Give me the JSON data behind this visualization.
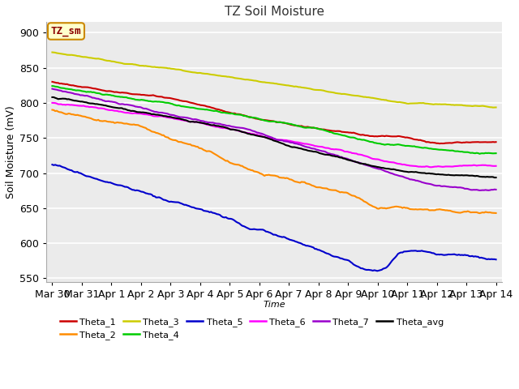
{
  "title": "TZ Soil Moisture",
  "ylabel": "Soil Moisture (mV)",
  "xlabel": "Time",
  "label_box": "TZ_sm",
  "x_ticks": [
    "Mar 30",
    "Mar 31",
    "Apr 1",
    "Apr 2",
    "Apr 3",
    "Apr 4",
    "Apr 5",
    "Apr 6",
    "Apr 7",
    "Apr 8",
    "Apr 9",
    "Apr 10",
    "Apr 11",
    "Apr 12",
    "Apr 13",
    "Apr 14"
  ],
  "ylim": [
    545,
    915
  ],
  "yticks": [
    550,
    600,
    650,
    700,
    750,
    800,
    850,
    900
  ],
  "series": {
    "Theta_1": {
      "color": "#cc0000"
    },
    "Theta_2": {
      "color": "#ff8c00"
    },
    "Theta_3": {
      "color": "#cccc00"
    },
    "Theta_4": {
      "color": "#00cc00"
    },
    "Theta_5": {
      "color": "#0000cc"
    },
    "Theta_6": {
      "color": "#ff00ff"
    },
    "Theta_7": {
      "color": "#9900cc"
    },
    "Theta_avg": {
      "color": "#000000"
    }
  },
  "background_color": "#ffffff",
  "plot_bg_color": "#ebebeb",
  "grid_color": "#ffffff",
  "n_points": 300,
  "legend_order": [
    "Theta_1",
    "Theta_2",
    "Theta_3",
    "Theta_4",
    "Theta_5",
    "Theta_6",
    "Theta_7",
    "Theta_avg"
  ]
}
